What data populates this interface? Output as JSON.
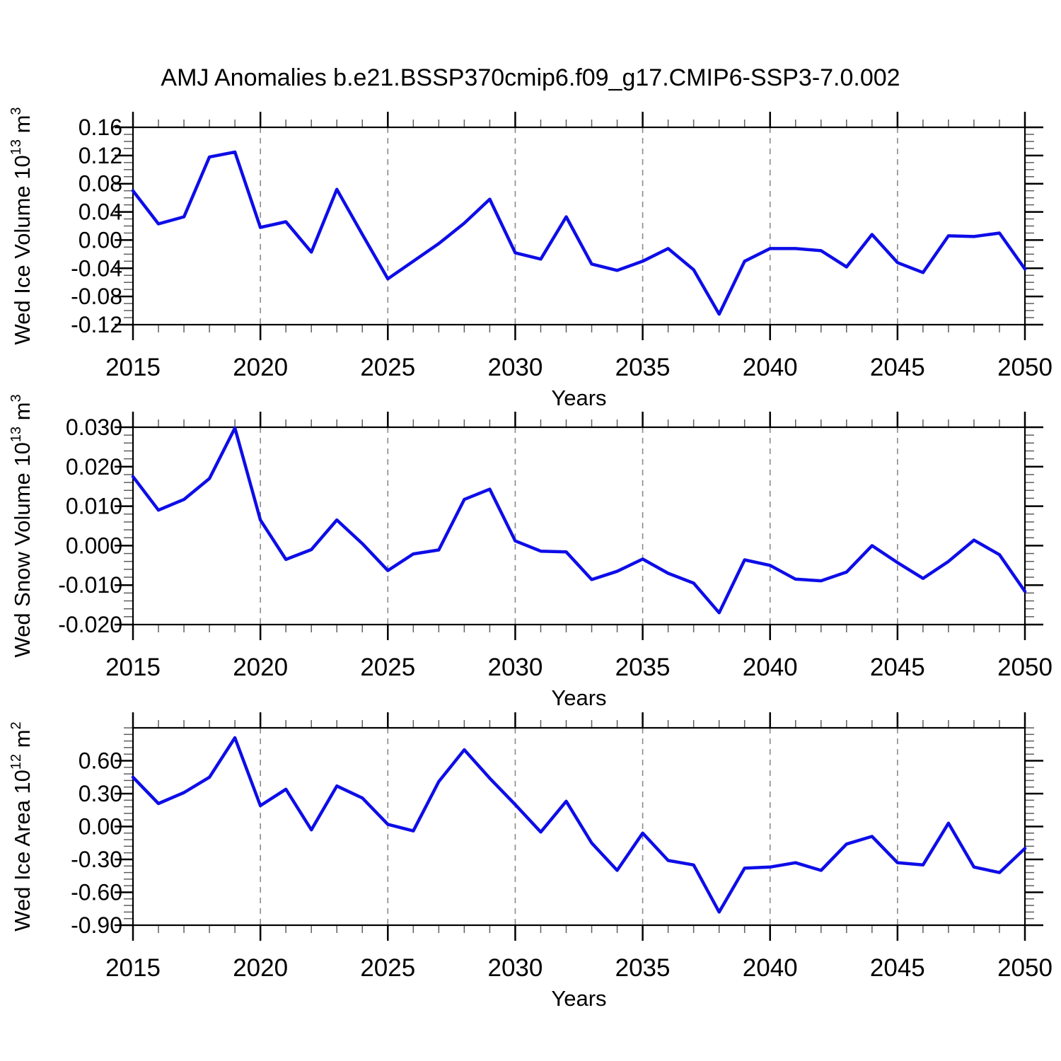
{
  "title": "AMJ Anomalies b.e21.BSSP370cmip6.f09_g17.CMIP6-SSP3-7.0.002",
  "colors": {
    "line": "#0d0de8",
    "frame": "#000000",
    "grid": "#8a8a8a",
    "major_tick": "#000000",
    "minor_tick": "#5e5e5e",
    "text": "#000000"
  },
  "years": [
    2015,
    2016,
    2017,
    2018,
    2019,
    2020,
    2021,
    2022,
    2023,
    2024,
    2025,
    2026,
    2027,
    2028,
    2029,
    2030,
    2031,
    2032,
    2033,
    2034,
    2035,
    2036,
    2037,
    2038,
    2039,
    2040,
    2041,
    2042,
    2043,
    2044,
    2045,
    2046,
    2047,
    2048,
    2049,
    2050
  ],
  "xaxis": {
    "label": "Years",
    "tick_years": [
      2015,
      2020,
      2025,
      2030,
      2035,
      2040,
      2045,
      2050
    ],
    "tick_labels": [
      "2015",
      "2020",
      "2025",
      "2030",
      "2035",
      "2040",
      "2045",
      "2050"
    ],
    "gridline_years": [
      2020,
      2025,
      2030,
      2035,
      2040,
      2045
    ],
    "minor_tick_every": 1,
    "xlim": [
      2015,
      2050
    ]
  },
  "chart_data": [
    {
      "id": "wed-ice-volume",
      "type": "line",
      "ylabel": "Wed Ice Volume 10^13 m^3",
      "ylabel_parts": [
        {
          "t": "Wed Ice Volume 10"
        },
        {
          "t": "13",
          "sup": true
        },
        {
          "t": " m"
        },
        {
          "t": "3",
          "sup": true
        }
      ],
      "xlabel": "Years",
      "ylim": [
        -0.12,
        0.16
      ],
      "yticks": [
        {
          "v": 0.16,
          "label": "0.16"
        },
        {
          "v": 0.12,
          "label": "0.12"
        },
        {
          "v": 0.08,
          "label": "0.08"
        },
        {
          "v": 0.04,
          "label": "0.04"
        },
        {
          "v": 0.0,
          "label": "0.00"
        },
        {
          "v": -0.04,
          "label": "-0.04"
        },
        {
          "v": -0.08,
          "label": "-0.08"
        },
        {
          "v": -0.12,
          "label": "-0.12"
        }
      ],
      "y_minor_step": 0.01,
      "values": [
        0.07,
        0.023,
        0.033,
        0.118,
        0.125,
        0.018,
        0.026,
        -0.017,
        0.072,
        0.008,
        -0.055,
        -0.03,
        -0.005,
        0.024,
        0.058,
        -0.018,
        -0.027,
        0.033,
        -0.034,
        -0.043,
        -0.03,
        -0.012,
        -0.042,
        -0.105,
        -0.03,
        -0.012,
        -0.012,
        -0.015,
        -0.038,
        0.008,
        -0.032,
        -0.046,
        0.006,
        0.005,
        0.01,
        -0.041
      ]
    },
    {
      "id": "wed-snow-volume",
      "type": "line",
      "ylabel": "Wed Snow Volume 10^13 m^3",
      "ylabel_parts": [
        {
          "t": "Wed Snow Volume 10"
        },
        {
          "t": "13",
          "sup": true
        },
        {
          "t": " m"
        },
        {
          "t": "3",
          "sup": true
        }
      ],
      "xlabel": "Years",
      "ylim": [
        -0.02,
        0.03
      ],
      "yticks": [
        {
          "v": 0.03,
          "label": "0.030"
        },
        {
          "v": 0.02,
          "label": "0.020"
        },
        {
          "v": 0.01,
          "label": "0.010"
        },
        {
          "v": 0.0,
          "label": "0.000"
        },
        {
          "v": -0.01,
          "label": "-0.010"
        },
        {
          "v": -0.02,
          "label": "-0.020"
        }
      ],
      "y_minor_step": 0.002,
      "values": [
        0.0175,
        0.009,
        0.0117,
        0.017,
        0.0298,
        0.0065,
        -0.0035,
        -0.001,
        0.0065,
        0.0005,
        -0.0063,
        -0.0021,
        -0.0011,
        0.0117,
        0.0143,
        0.0012,
        -0.0014,
        -0.0016,
        -0.0086,
        -0.0065,
        -0.0034,
        -0.007,
        -0.0095,
        -0.017,
        -0.0036,
        -0.005,
        -0.0085,
        -0.0089,
        -0.0067,
        0.0,
        -0.0043,
        -0.0083,
        -0.004,
        0.0014,
        -0.0023,
        -0.0116
      ]
    },
    {
      "id": "wed-ice-area",
      "type": "line",
      "ylabel": "Wed Ice Area 10^12 m^2",
      "ylabel_parts": [
        {
          "t": "Wed Ice Area 10"
        },
        {
          "t": "12",
          "sup": true
        },
        {
          "t": " m"
        },
        {
          "t": "2",
          "sup": true
        }
      ],
      "xlabel": "Years",
      "ylim": [
        -0.9,
        0.9
      ],
      "yticks": [
        {
          "v": 0.6,
          "label": "0.60"
        },
        {
          "v": 0.3,
          "label": "0.30"
        },
        {
          "v": 0.0,
          "label": "0.00"
        },
        {
          "v": -0.3,
          "label": "-0.30"
        },
        {
          "v": -0.6,
          "label": "-0.60"
        },
        {
          "v": -0.9,
          "label": "-0.90"
        }
      ],
      "y_minor_step": 0.06,
      "values": [
        0.45,
        0.21,
        0.31,
        0.45,
        0.81,
        0.19,
        0.34,
        -0.03,
        0.37,
        0.26,
        0.02,
        -0.04,
        0.41,
        0.7,
        0.44,
        0.2,
        -0.05,
        0.23,
        -0.15,
        -0.4,
        -0.06,
        -0.31,
        -0.35,
        -0.78,
        -0.38,
        -0.37,
        -0.33,
        -0.4,
        -0.16,
        -0.09,
        -0.33,
        -0.35,
        0.03,
        -0.37,
        -0.42,
        -0.2
      ]
    }
  ]
}
